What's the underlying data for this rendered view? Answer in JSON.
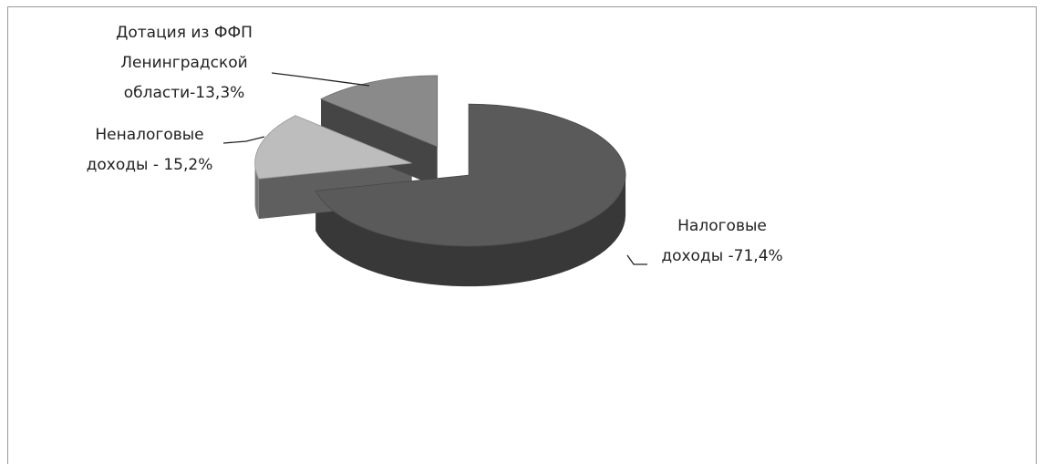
{
  "chart_data": {
    "type": "pie3d",
    "values": [
      71.4,
      15.2,
      13.3
    ],
    "value_labels": [
      "Налоговые доходы -71,4%",
      "Неналоговые доходы - 15,2%",
      "Дотация из ФФП Ленинградской области-13,3%"
    ],
    "colors": [
      "#5a5a5a",
      "#bdbdbd",
      "#8a8a8a"
    ]
  }
}
